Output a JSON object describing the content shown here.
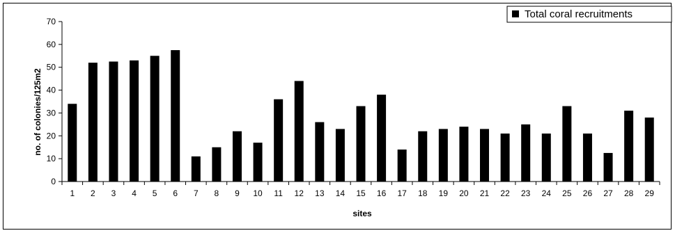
{
  "chart_data": {
    "type": "bar",
    "title": "",
    "xlabel": "sites",
    "ylabel": "no. of colonies/125m2",
    "ylim": [
      0,
      70
    ],
    "yticks": [
      0,
      10,
      20,
      30,
      40,
      50,
      60,
      70
    ],
    "grid": false,
    "legend_position": "top-right",
    "categories": [
      "1",
      "2",
      "3",
      "4",
      "5",
      "6",
      "7",
      "8",
      "9",
      "10",
      "11",
      "12",
      "13",
      "14",
      "15",
      "16",
      "17",
      "18",
      "19",
      "20",
      "21",
      "22",
      "23",
      "24",
      "25",
      "26",
      "27",
      "28",
      "29"
    ],
    "series": [
      {
        "name": "Total coral recruitments",
        "color": "#000000",
        "values": [
          34,
          52,
          52.5,
          53,
          55,
          57.5,
          11,
          15,
          22,
          17,
          36,
          44,
          26,
          23,
          33,
          38,
          14,
          22,
          23,
          24,
          23,
          21,
          25,
          21,
          33,
          21,
          12.5,
          31,
          28
        ]
      }
    ]
  }
}
